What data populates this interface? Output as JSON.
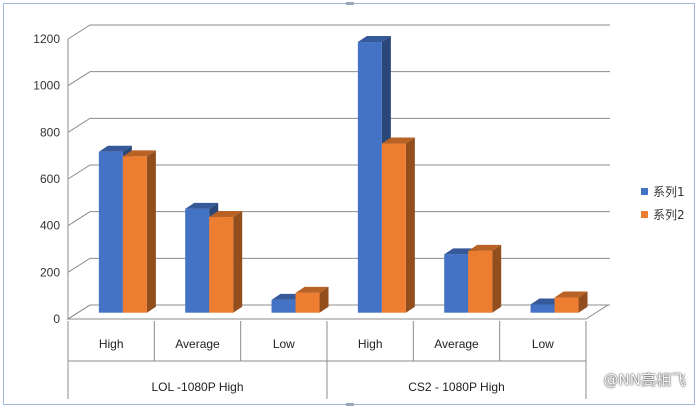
{
  "chart_data": {
    "type": "bar",
    "groups": [
      {
        "label": "LOL  -1080P High",
        "categories": [
          "High",
          "Average",
          "Low"
        ]
      },
      {
        "label": "CS2  - 1080P High",
        "categories": [
          "High",
          "Average",
          "Low"
        ]
      }
    ],
    "categories": [
      "High",
      "Average",
      "Low",
      "High",
      "Average",
      "Low"
    ],
    "series": [
      {
        "name": "系列1",
        "color": "#4472c4",
        "values": [
          690,
          445,
          55,
          1160,
          250,
          35
        ]
      },
      {
        "name": "系列2",
        "color": "#ed7d31",
        "values": [
          670,
          410,
          85,
          725,
          265,
          65
        ]
      }
    ],
    "yticks": [
      0,
      200,
      400,
      600,
      800,
      1000,
      1200
    ],
    "ylim": [
      0,
      1200
    ],
    "grid": true,
    "legend_position": "right",
    "three_d": true
  },
  "watermark": "@NN高相飞"
}
